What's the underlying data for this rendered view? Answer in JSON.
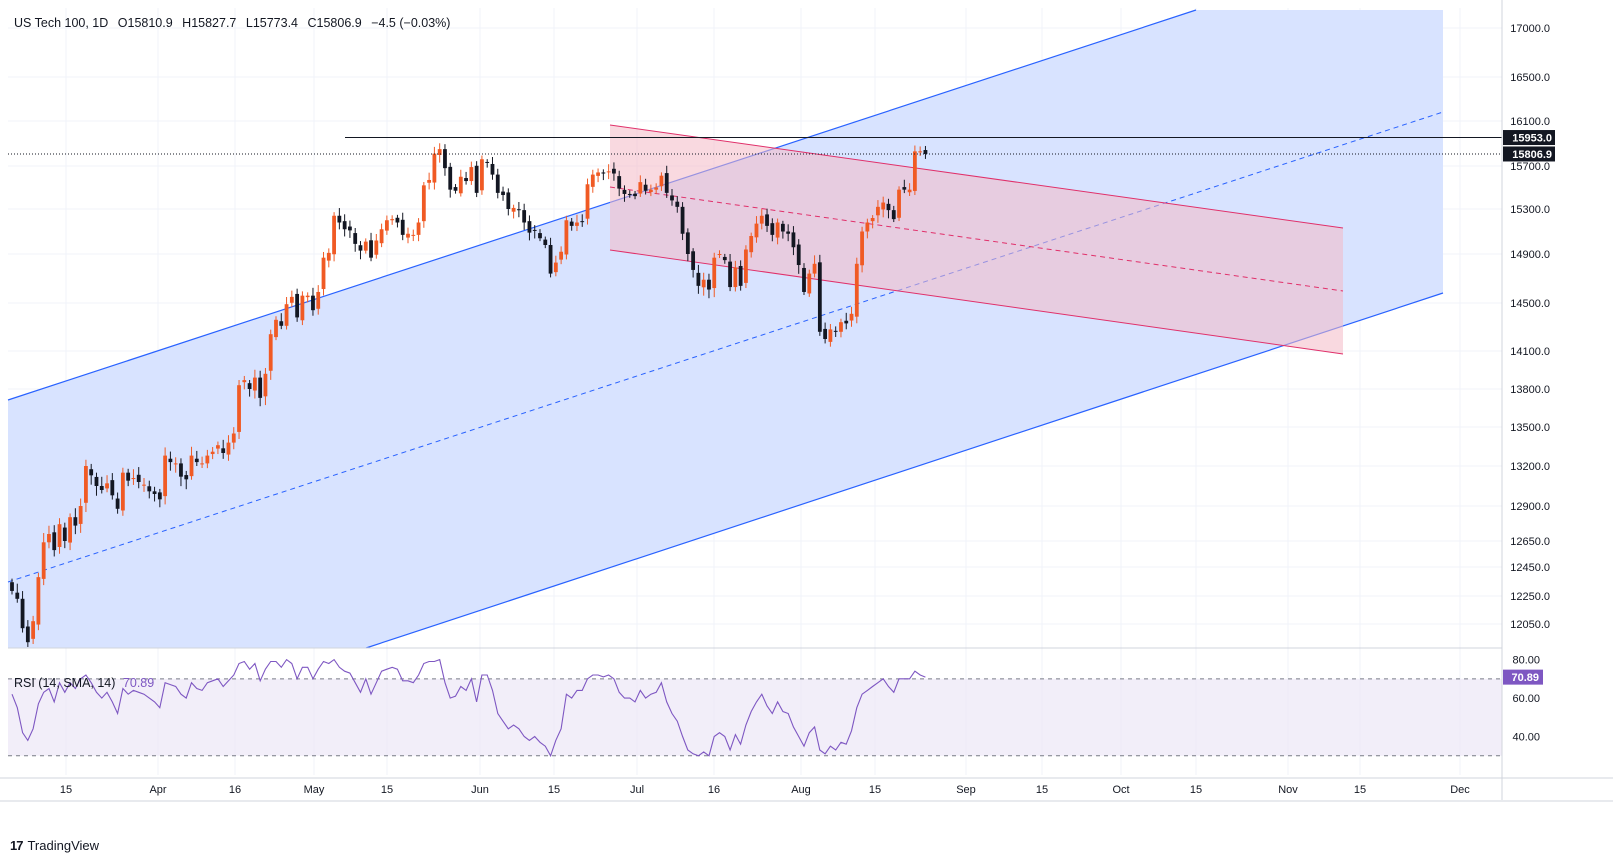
{
  "header": {
    "symbol": "US Tech 100, 1D",
    "open": "O15810.9",
    "high": "H15827.7",
    "low": "L15773.4",
    "close": "C15806.9",
    "change": "−4.5 (−0.03%)"
  },
  "rsi_header": {
    "label": "RSI (14, SMA, 14)",
    "value": "70.89"
  },
  "footer": {
    "brand": "TradingView"
  },
  "colors": {
    "up": "#F05A24",
    "down": "#131722",
    "channel_fill": "#D6E2FF",
    "channel_line": "#2962FF",
    "bear_fill": "#F4C6CE",
    "bear_line": "#E0306A",
    "rsi": "#7E57C2"
  },
  "chart_data": [
    {
      "type": "candlestick",
      "title": "US Tech 100, 1D",
      "ylim": [
        11800,
        17200
      ],
      "y_ticks": [
        "17000.0",
        "16500.0",
        "16100.0",
        "15700.0",
        "15300.0",
        "14900.0",
        "14500.0",
        "14100.0",
        "13800.0",
        "13500.0",
        "13200.0",
        "12900.0",
        "12650.0",
        "12450.0",
        "12250.0",
        "12050.0"
      ],
      "x_ticks": [
        "15",
        "Apr",
        "16",
        "May",
        "15",
        "Jun",
        "15",
        "Jul",
        "16",
        "Aug",
        "15",
        "Sep",
        "15",
        "Oct",
        "15",
        "Nov",
        "15",
        "Dec"
      ],
      "price_labels": [
        {
          "text": "15953.0",
          "value": 15953,
          "style": "dark"
        },
        {
          "text": "15806.9",
          "value": 15806.9,
          "style": "dark"
        }
      ],
      "last_close": 15806.9,
      "resistance": 15953,
      "closes": [
        12285,
        12230,
        12020,
        11920,
        12070,
        12380,
        12640,
        12700,
        12580,
        12770,
        12650,
        12820,
        12760,
        12900,
        13200,
        13130,
        13050,
        13020,
        13070,
        12980,
        12880,
        13150,
        13090,
        13110,
        13080,
        13060,
        13010,
        12990,
        12950,
        13280,
        13230,
        13220,
        13120,
        13100,
        13280,
        13230,
        13220,
        13280,
        13310,
        13360,
        13300,
        13380,
        13450,
        13830,
        13870,
        13800,
        13890,
        13730,
        13920,
        14240,
        14360,
        14310,
        14490,
        14550,
        14380,
        14560,
        14560,
        14440,
        14590,
        14870,
        14910,
        15240,
        15180,
        15120,
        15110,
        14990,
        14930,
        15010,
        14870,
        15020,
        15120,
        15200,
        15210,
        15180,
        15070,
        15080,
        15070,
        15180,
        15520,
        15570,
        15810,
        15850,
        15680,
        15480,
        15470,
        15600,
        15560,
        15690,
        15450,
        15760,
        15730,
        15620,
        15450,
        15430,
        15300,
        15310,
        15290,
        15180,
        15090,
        15110,
        15040,
        14980,
        14740,
        14830,
        14920,
        15200,
        15150,
        15180,
        15190,
        15530,
        15620,
        15640,
        15630,
        15650,
        15630,
        15490,
        15440,
        15430,
        15420,
        15550,
        15470,
        15480,
        15500,
        15610,
        15450,
        15380,
        15320,
        15080,
        14900,
        14770,
        14640,
        14690,
        14610,
        14870,
        14900,
        14850,
        14630,
        14790,
        14640,
        14940,
        15060,
        15170,
        15240,
        15150,
        15070,
        15180,
        15100,
        15080,
        14960,
        14810,
        14590,
        14740,
        14820,
        14260,
        14200,
        14280,
        14260,
        14340,
        14330,
        14410,
        14820,
        15100,
        15180,
        15220,
        15320,
        15360,
        15290,
        15210,
        15480,
        15480,
        15480,
        15830,
        15830,
        15806.9
      ],
      "candles_estimated": true,
      "channels": [
        {
          "name": "",
          "type": "ascending regression channel",
          "color": "#2962FF"
        },
        {
          "name": "",
          "type": "descending regression channel",
          "color": "#E0306A"
        }
      ]
    },
    {
      "type": "line",
      "title": "RSI (14, SMA, 14)",
      "ylim": [
        20,
        85
      ],
      "y_ticks": [
        "80.00",
        "60.00",
        "40.00"
      ],
      "levels": [
        70,
        30
      ],
      "value_label": "70.89",
      "series": [
        {
          "name": "RSI",
          "values": [
            62,
            55,
            42,
            38,
            44,
            57,
            63,
            65,
            58,
            68,
            63,
            68,
            65,
            70,
            72,
            68,
            63,
            60,
            63,
            58,
            52,
            65,
            62,
            64,
            63,
            62,
            60,
            58,
            55,
            68,
            67,
            66,
            62,
            60,
            68,
            65,
            64,
            68,
            69,
            70,
            66,
            69,
            72,
            78,
            79,
            75,
            78,
            69,
            75,
            79,
            79,
            76,
            80,
            78,
            70,
            76,
            76,
            70,
            75,
            79,
            78,
            80,
            76,
            74,
            73,
            68,
            63,
            70,
            62,
            68,
            74,
            75,
            76,
            75,
            69,
            69,
            68,
            72,
            78,
            79,
            79,
            80,
            68,
            60,
            61,
            66,
            64,
            70,
            58,
            72,
            72,
            64,
            52,
            48,
            44,
            46,
            44,
            40,
            38,
            40,
            37,
            35,
            30,
            38,
            44,
            62,
            60,
            64,
            64,
            70,
            72,
            72,
            71,
            72,
            70,
            63,
            60,
            60,
            58,
            64,
            60,
            62,
            63,
            68,
            58,
            52,
            48,
            40,
            33,
            31,
            30,
            32,
            30,
            40,
            42,
            40,
            33,
            41,
            36,
            46,
            53,
            58,
            62,
            56,
            52,
            58,
            53,
            52,
            45,
            40,
            35,
            42,
            45,
            33,
            31,
            35,
            33,
            37,
            36,
            43,
            55,
            62,
            64,
            66,
            68,
            70,
            66,
            63,
            70,
            70,
            70,
            74,
            72,
            70.89
          ]
        }
      ]
    }
  ]
}
